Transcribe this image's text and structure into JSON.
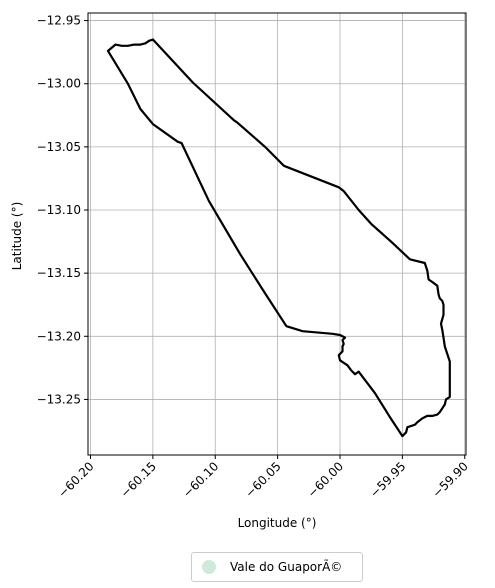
{
  "chart_data": {
    "type": "map",
    "xlabel": "Longitude (°)",
    "ylabel": "Latitude (°)",
    "xlim": [
      -60.202,
      -59.899
    ],
    "ylim": [
      -13.294,
      -12.944
    ],
    "xticks": [
      -60.2,
      -60.15,
      -60.1,
      -60.05,
      -60.0,
      -59.95,
      -59.9
    ],
    "xtick_labels": [
      "−60.20",
      "−60.15",
      "−60.10",
      "−60.05",
      "−60.00",
      "−59.95",
      "−59.90"
    ],
    "yticks": [
      -12.95,
      -13.0,
      -13.05,
      -13.1,
      -13.15,
      -13.2,
      -13.25
    ],
    "ytick_labels": [
      "−12.95",
      "−13.00",
      "−13.05",
      "−13.10",
      "−13.15",
      "−13.20",
      "−13.25"
    ],
    "grid": true,
    "legend": {
      "placement": "bottom-center",
      "entries": [
        {
          "label": "Vale do GuaporÃ©",
          "color": "#cfe9dc"
        }
      ]
    },
    "boundary": [
      [
        -60.186,
        -12.974
      ],
      [
        -60.18,
        -12.969
      ],
      [
        -60.175,
        -12.97
      ],
      [
        -60.17,
        -12.97
      ],
      [
        -60.165,
        -12.969
      ],
      [
        -60.16,
        -12.969
      ],
      [
        -60.156,
        -12.968
      ],
      [
        -60.153,
        -12.966
      ],
      [
        -60.15,
        -12.965
      ],
      [
        -60.118,
        -12.999
      ],
      [
        -60.085,
        -13.029
      ],
      [
        -60.082,
        -13.031
      ],
      [
        -60.06,
        -13.05
      ],
      [
        -60.045,
        -13.065
      ],
      [
        -60.001,
        -13.082
      ],
      [
        -59.997,
        -13.085
      ],
      [
        -59.985,
        -13.1
      ],
      [
        -59.975,
        -13.111
      ],
      [
        -59.958,
        -13.126
      ],
      [
        -59.944,
        -13.139
      ],
      [
        -59.932,
        -13.142
      ],
      [
        -59.93,
        -13.148
      ],
      [
        -59.929,
        -13.155
      ],
      [
        -59.926,
        -13.157
      ],
      [
        -59.922,
        -13.16
      ],
      [
        -59.921,
        -13.167
      ],
      [
        -59.92,
        -13.17
      ],
      [
        -59.918,
        -13.172
      ],
      [
        -59.917,
        -13.175
      ],
      [
        -59.917,
        -13.183
      ],
      [
        -59.919,
        -13.19
      ],
      [
        -59.918,
        -13.195
      ],
      [
        -59.917,
        -13.201
      ],
      [
        -59.916,
        -13.208
      ],
      [
        -59.914,
        -13.214
      ],
      [
        -59.912,
        -13.22
      ],
      [
        -59.912,
        -13.233
      ],
      [
        -59.912,
        -13.248
      ],
      [
        -59.915,
        -13.25
      ],
      [
        -59.916,
        -13.254
      ],
      [
        -59.918,
        -13.257
      ],
      [
        -59.92,
        -13.26
      ],
      [
        -59.922,
        -13.262
      ],
      [
        -59.926,
        -13.263
      ],
      [
        -59.93,
        -13.263
      ],
      [
        -59.934,
        -13.265
      ],
      [
        -59.938,
        -13.268
      ],
      [
        -59.94,
        -13.27
      ],
      [
        -59.943,
        -13.271
      ],
      [
        -59.946,
        -13.272
      ],
      [
        -59.947,
        -13.276
      ],
      [
        -59.95,
        -13.279
      ],
      [
        -59.96,
        -13.264
      ],
      [
        -59.972,
        -13.245
      ],
      [
        -59.985,
        -13.228
      ],
      [
        -59.988,
        -13.23
      ],
      [
        -59.991,
        -13.227
      ],
      [
        -59.994,
        -13.223
      ],
      [
        -59.997,
        -13.221
      ],
      [
        -60.0,
        -13.219
      ],
      [
        -60.001,
        -13.215
      ],
      [
        -59.998,
        -13.212
      ],
      [
        -59.998,
        -13.208
      ],
      [
        -59.997,
        -13.206
      ],
      [
        -59.998,
        -13.203
      ],
      [
        -59.996,
        -13.201
      ],
      [
        -60.0,
        -13.199
      ],
      [
        -60.006,
        -13.198
      ],
      [
        -60.03,
        -13.196
      ],
      [
        -60.043,
        -13.192
      ],
      [
        -60.06,
        -13.166
      ],
      [
        -60.08,
        -13.135
      ],
      [
        -60.105,
        -13.093
      ],
      [
        -60.127,
        -13.047
      ],
      [
        -60.13,
        -13.046
      ],
      [
        -60.15,
        -13.032
      ],
      [
        -60.16,
        -13.02
      ],
      [
        -60.17,
        -13.0
      ],
      [
        -60.186,
        -12.974
      ]
    ]
  }
}
